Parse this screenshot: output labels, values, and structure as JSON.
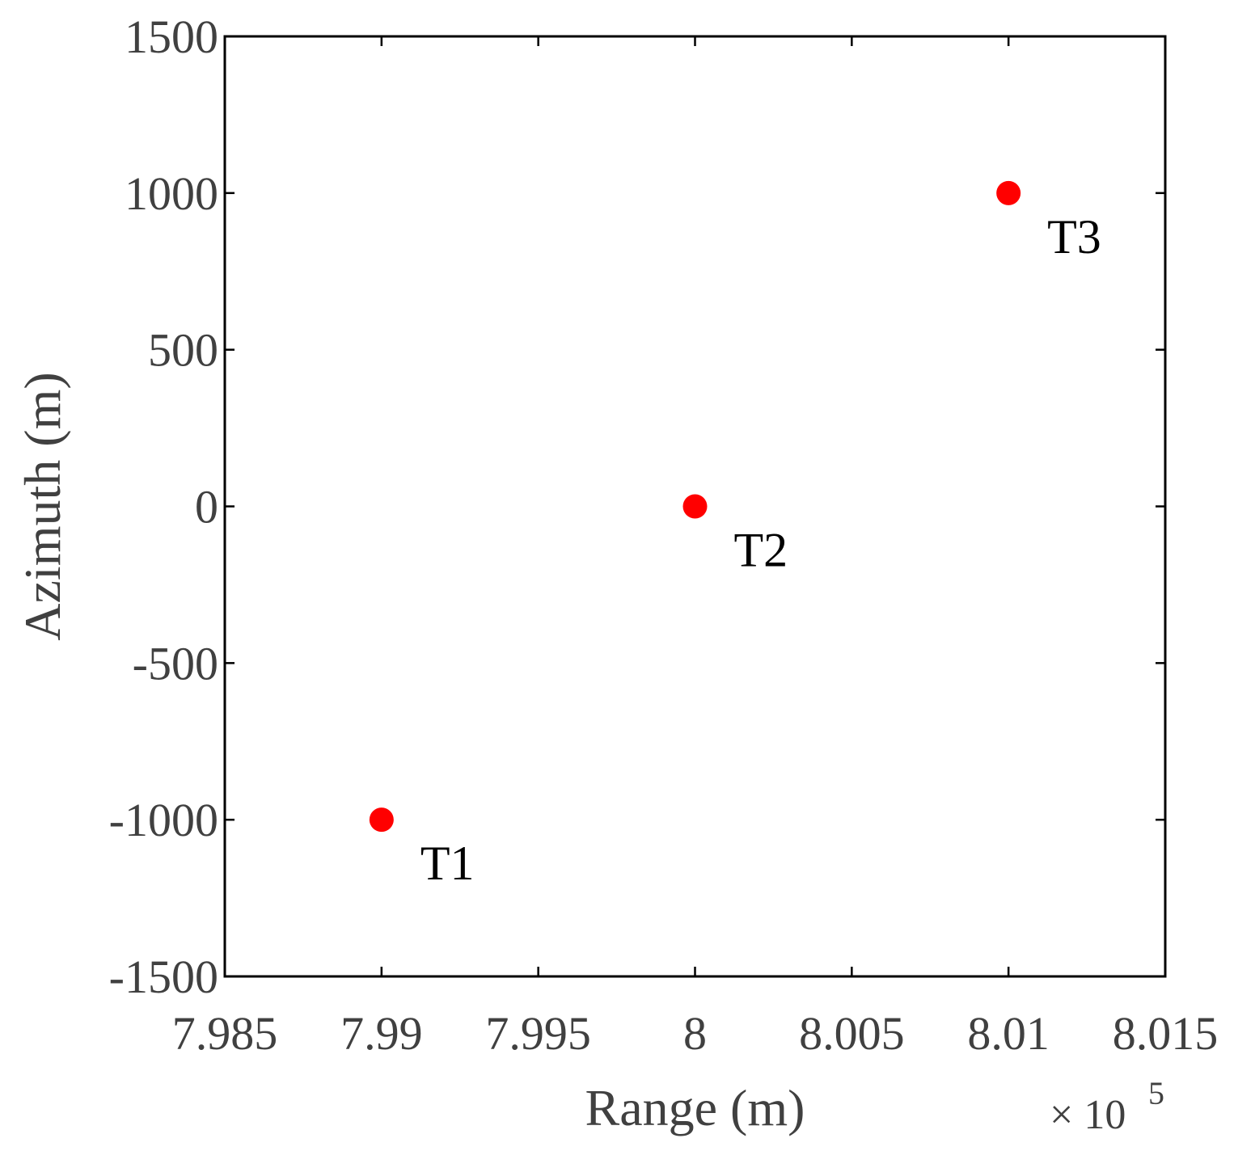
{
  "chart_data": {
    "type": "scatter",
    "xlabel": "Range (m)",
    "ylabel": "Azimuth (m)",
    "x_multiplier": {
      "prefix": "× 10",
      "exponent": "5"
    },
    "xlim": [
      7.985,
      8.015
    ],
    "ylim": [
      -1500,
      1500
    ],
    "xticks": [
      7.985,
      7.99,
      7.995,
      8,
      8.005,
      8.01,
      8.015
    ],
    "xtick_labels": [
      "7.985",
      "7.99",
      "7.995",
      "8",
      "8.005",
      "8.01",
      "8.015"
    ],
    "yticks": [
      -1500,
      -1000,
      -500,
      0,
      500,
      1000,
      1500
    ],
    "ytick_labels": [
      "-1500",
      "-1000",
      "-500",
      "0",
      "500",
      "1000",
      "1500"
    ],
    "grid": false,
    "marker_color": "#ff0000",
    "points": [
      {
        "x": 7.99,
        "y": -1000,
        "label": "T1"
      },
      {
        "x": 8.0,
        "y": 0,
        "label": "T2"
      },
      {
        "x": 8.01,
        "y": 1000,
        "label": "T3"
      }
    ]
  }
}
